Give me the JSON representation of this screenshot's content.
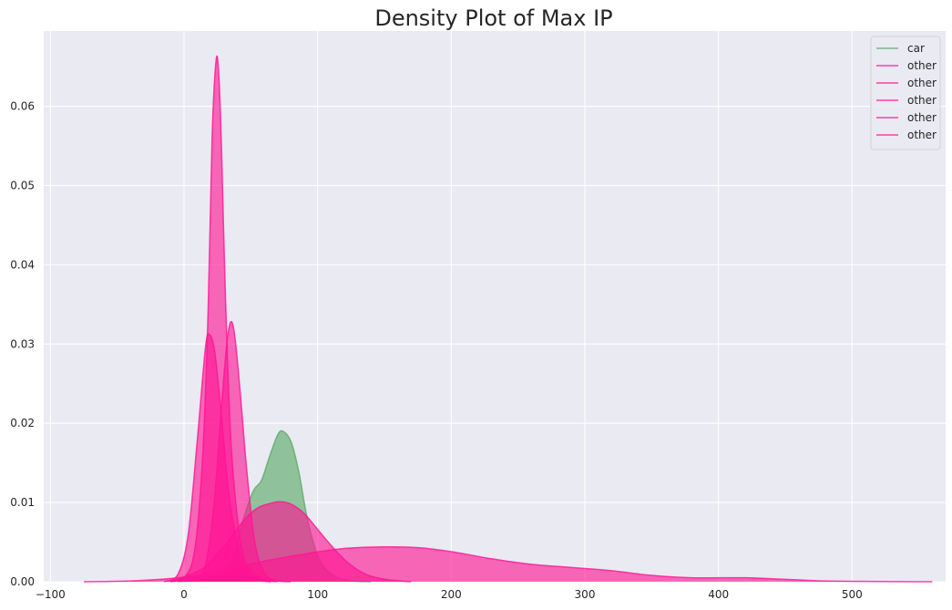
{
  "chart_data": {
    "type": "area",
    "title": "Density Plot of Max IP",
    "xlabel": "",
    "ylabel": "",
    "xlim": [
      -105,
      570
    ],
    "ylim": [
      0,
      0.0695
    ],
    "x_ticks": [
      -100,
      0,
      100,
      200,
      300,
      400,
      500
    ],
    "y_ticks": [
      0.0,
      0.01,
      0.02,
      0.03,
      0.04,
      0.05,
      0.06
    ],
    "x_tick_labels": [
      "−100",
      "0",
      "100",
      "200",
      "300",
      "400",
      "500"
    ],
    "y_tick_labels": [
      "0.00",
      "0.01",
      "0.02",
      "0.03",
      "0.04",
      "0.05",
      "0.06"
    ],
    "grid": true,
    "legend_position": "top-right",
    "series": [
      {
        "name": "car",
        "color": "#5daa6a",
        "points": [
          [
            -5,
            0
          ],
          [
            20,
            0.0004
          ],
          [
            35,
            0.0024
          ],
          [
            45,
            0.0082
          ],
          [
            52,
            0.0115
          ],
          [
            58,
            0.0128
          ],
          [
            64,
            0.0158
          ],
          [
            70,
            0.0185
          ],
          [
            74,
            0.019
          ],
          [
            80,
            0.0177
          ],
          [
            86,
            0.0138
          ],
          [
            92,
            0.0082
          ],
          [
            100,
            0.0033
          ],
          [
            110,
            0.001
          ],
          [
            125,
            0.0001
          ],
          [
            140,
            0
          ]
        ]
      },
      {
        "name": "other",
        "color": "#ff1493",
        "points": [
          [
            -10,
            0
          ],
          [
            0,
            0.0005
          ],
          [
            8,
            0.004
          ],
          [
            14,
            0.016
          ],
          [
            18,
            0.034
          ],
          [
            21,
            0.056
          ],
          [
            24,
            0.0658
          ],
          [
            26,
            0.064
          ],
          [
            28,
            0.055
          ],
          [
            31,
            0.036
          ],
          [
            35,
            0.018
          ],
          [
            40,
            0.008
          ],
          [
            45,
            0.003
          ],
          [
            52,
            0.001
          ],
          [
            60,
            0.0002
          ],
          [
            70,
            0
          ]
        ]
      },
      {
        "name": "other",
        "color": "#ff1493",
        "points": [
          [
            -15,
            0
          ],
          [
            -5,
            0.0008
          ],
          [
            3,
            0.0058
          ],
          [
            10,
            0.018
          ],
          [
            16,
            0.0295
          ],
          [
            19,
            0.0312
          ],
          [
            23,
            0.029
          ],
          [
            28,
            0.021
          ],
          [
            33,
            0.012
          ],
          [
            40,
            0.0046
          ],
          [
            48,
            0.0012
          ],
          [
            56,
            0.0002
          ],
          [
            65,
            0
          ]
        ]
      },
      {
        "name": "other",
        "color": "#ff1493",
        "points": [
          [
            5,
            0
          ],
          [
            15,
            0.0015
          ],
          [
            22,
            0.009
          ],
          [
            28,
            0.022
          ],
          [
            32,
            0.03
          ],
          [
            35,
            0.0328
          ],
          [
            38,
            0.031
          ],
          [
            42,
            0.024
          ],
          [
            47,
            0.014
          ],
          [
            53,
            0.005
          ],
          [
            60,
            0.0012
          ],
          [
            70,
            0.0001
          ],
          [
            80,
            0
          ]
        ]
      },
      {
        "name": "other",
        "color": "#ff1493",
        "points": [
          [
            -10,
            0
          ],
          [
            0,
            0.0006
          ],
          [
            15,
            0.0018
          ],
          [
            30,
            0.0045
          ],
          [
            45,
            0.0078
          ],
          [
            55,
            0.0093
          ],
          [
            65,
            0.0099
          ],
          [
            72,
            0.0101
          ],
          [
            80,
            0.0098
          ],
          [
            90,
            0.0086
          ],
          [
            100,
            0.0066
          ],
          [
            110,
            0.0046
          ],
          [
            120,
            0.0028
          ],
          [
            130,
            0.0015
          ],
          [
            140,
            0.0007
          ],
          [
            155,
            0.0002
          ],
          [
            170,
            0
          ]
        ]
      },
      {
        "name": "other",
        "color": "#ff1493",
        "points": [
          [
            -75,
            0
          ],
          [
            -40,
            0.0001
          ],
          [
            -10,
            0.0004
          ],
          [
            10,
            0.0008
          ],
          [
            30,
            0.0014
          ],
          [
            60,
            0.0026
          ],
          [
            90,
            0.0035
          ],
          [
            120,
            0.0042
          ],
          [
            150,
            0.0044
          ],
          [
            175,
            0.0043
          ],
          [
            200,
            0.0038
          ],
          [
            230,
            0.0029
          ],
          [
            260,
            0.0022
          ],
          [
            290,
            0.0018
          ],
          [
            320,
            0.0014
          ],
          [
            350,
            0.0008
          ],
          [
            380,
            0.0005
          ],
          [
            420,
            0.0005
          ],
          [
            450,
            0.0003
          ],
          [
            480,
            0.0001
          ],
          [
            520,
            3e-05
          ],
          [
            560,
            0
          ]
        ]
      }
    ]
  }
}
